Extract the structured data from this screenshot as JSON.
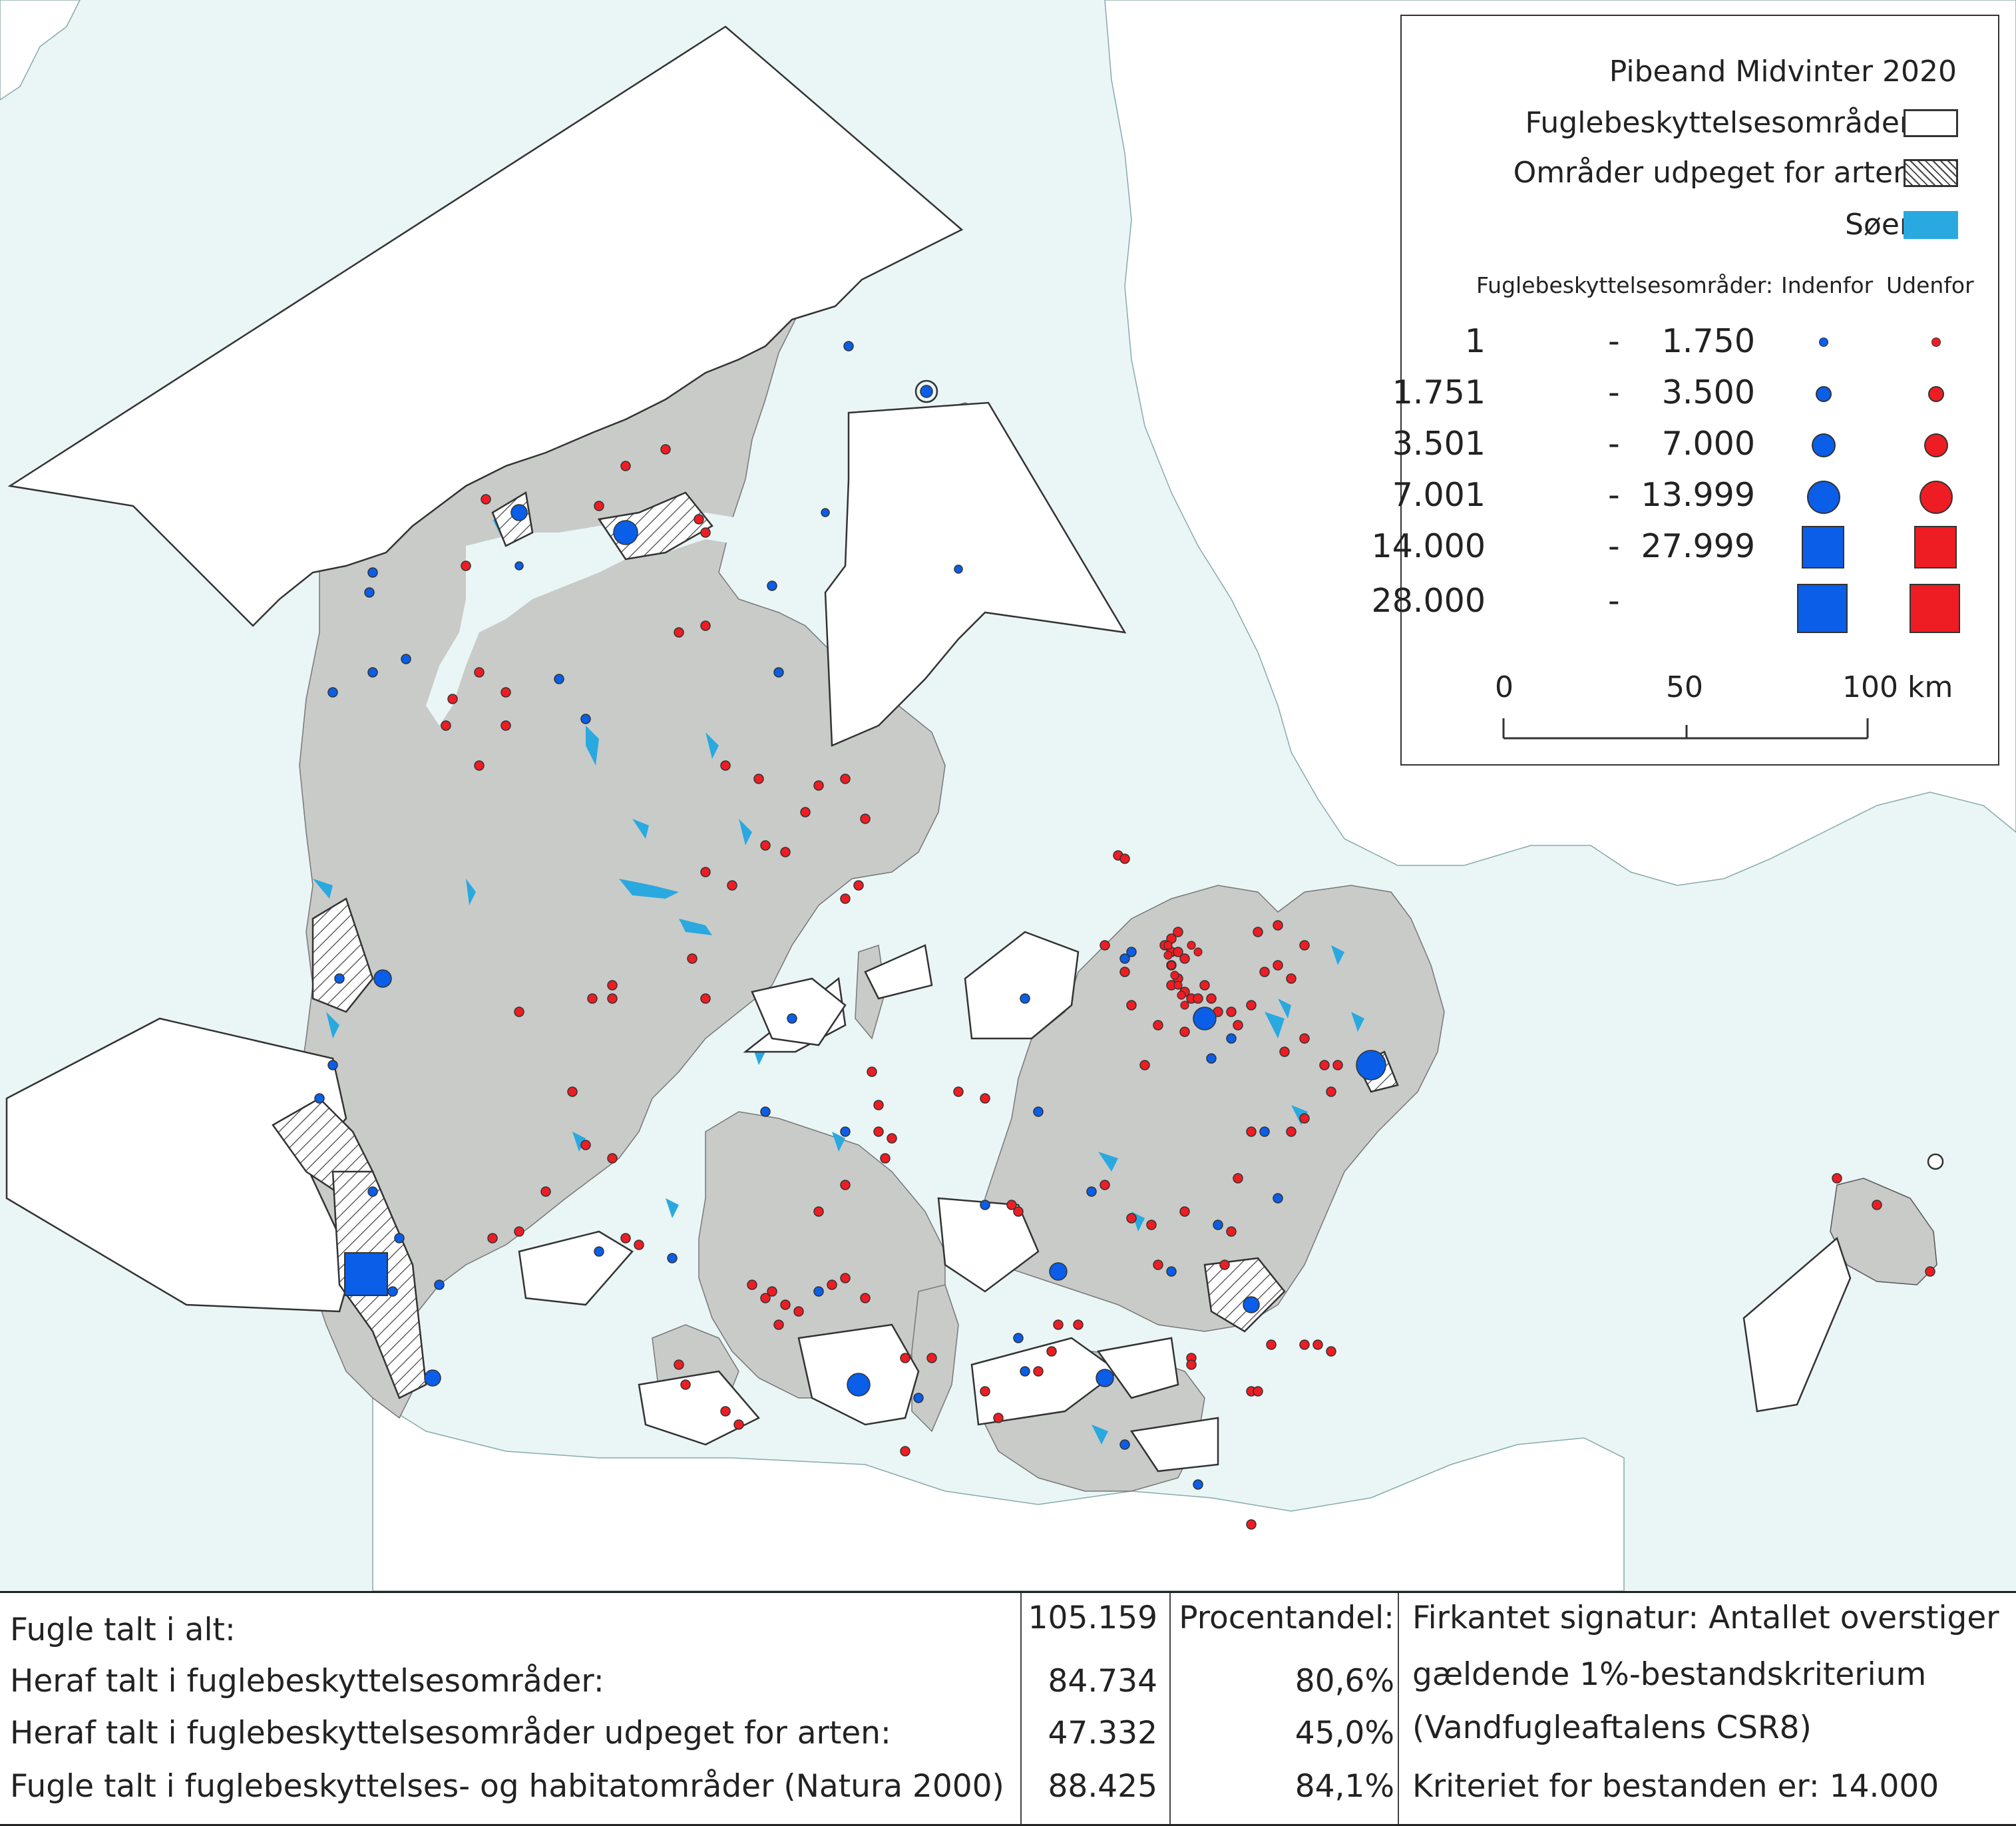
{
  "map": {
    "title": "Pibeand Midvinter 2020",
    "colors": {
      "sea": "#eaf5f6",
      "land_denmark": "#c9cbc9",
      "land_neighbours": "#ffffff",
      "lakes": "#29a9e0",
      "inside": "#0a5ee8",
      "outside": "#ee1d23",
      "boundary": "#333333"
    }
  },
  "legend": {
    "title": "Pibeand Midvinter 2020",
    "items": [
      {
        "label": "Fuglebeskyttelsesområder",
        "swatch": "white-box"
      },
      {
        "label": "Områder udpeget for arten",
        "swatch": "hatched-box"
      },
      {
        "label": "Søer",
        "swatch": "blue-box"
      }
    ],
    "column_header": "Fuglebeskyttelsesområder:",
    "col_inside": "Indenfor",
    "col_outside": "Udenfor",
    "classes": [
      {
        "from": "1",
        "dash": "-",
        "to": "1.750",
        "shape": "circle",
        "size": "1"
      },
      {
        "from": "1.751",
        "dash": "-",
        "to": "3.500",
        "shape": "circle",
        "size": "2"
      },
      {
        "from": "3.501",
        "dash": "-",
        "to": "7.000",
        "shape": "circle",
        "size": "3"
      },
      {
        "from": "7.001",
        "dash": "-",
        "to": "13.999",
        "shape": "circle",
        "size": "4"
      },
      {
        "from": "14.000",
        "dash": "-",
        "to": "27.999",
        "shape": "square",
        "size": "5"
      },
      {
        "from": "28.000",
        "dash": "-",
        "to": "",
        "shape": "square",
        "size": "6"
      }
    ],
    "scale": {
      "ticks": [
        "0",
        "50",
        "100 km"
      ]
    }
  },
  "stats": {
    "rows": [
      {
        "label": "Fugle talt i alt:",
        "value": "105.159",
        "percent": "Procentandel:",
        "note": "Firkantet signatur: Antallet overstiger"
      },
      {
        "label": "Heraf talt i fuglebeskyttelsesområder:",
        "value": "84.734",
        "percent": "80,6%",
        "note": "gældende 1%-bestandskriterium"
      },
      {
        "label": "Heraf talt i fuglebeskyttelsesområder udpeget for arten:",
        "value": "47.332",
        "percent": "45,0%",
        "note": "(Vandfugleaftalens CSR8)"
      },
      {
        "label": "Fugle talt i fuglebeskyttelses- og habitatområder (Natura 2000)",
        "value": "88.425",
        "percent": "84,1%",
        "note": "Kriteriet for bestanden er: 14.000"
      }
    ]
  }
}
